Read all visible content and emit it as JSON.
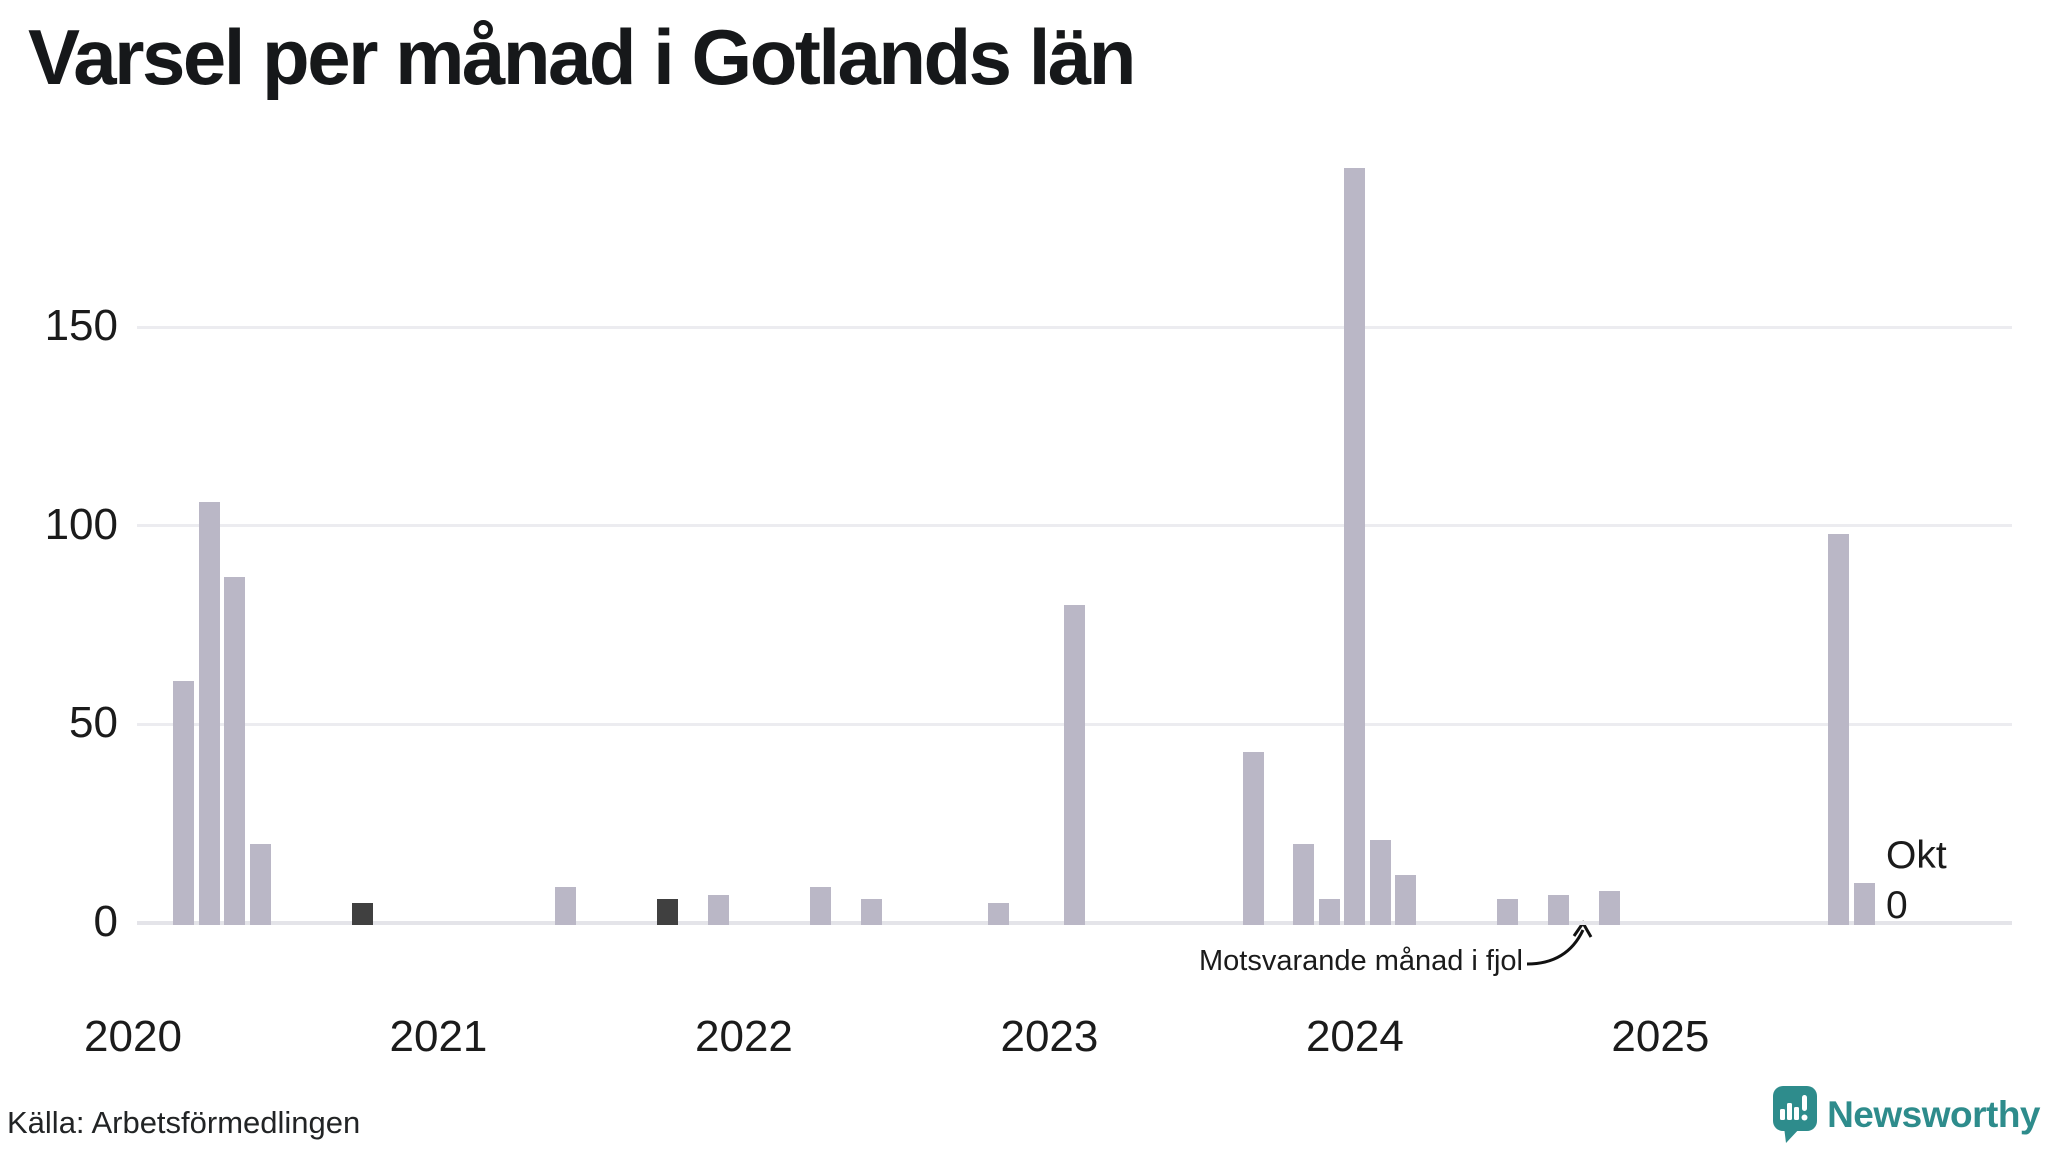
{
  "title": "Varsel per månad i Gotlands län",
  "source": {
    "text": "Källa: Arbetsförmedlingen"
  },
  "annotation": {
    "text": "Motsvarande månad i fjol",
    "points_to_month": "2024-10"
  },
  "latest_label": {
    "month": "Okt",
    "value": "0"
  },
  "brand": {
    "name": "Newsworthy"
  },
  "colors": {
    "bar": "#bab7c6",
    "bar_highlight": "#404040",
    "gridline": "#ececf0",
    "axisline": "#e4e4e9",
    "text": "#1b1b1b",
    "brand_teal": "#2e8c8c"
  },
  "chart_data": {
    "type": "bar",
    "title": "Varsel per månad i Gotlands län",
    "xlabel": "",
    "ylabel": "",
    "x_range": [
      "2020-01",
      "2025-10"
    ],
    "ylim": [
      0,
      195
    ],
    "grid": "horizontal",
    "y_ticks": [
      0,
      50,
      100,
      150
    ],
    "y_tick_labels": [
      "0",
      "50",
      "100",
      "150"
    ],
    "year_labels": [
      "2020",
      "2021",
      "2022",
      "2023",
      "2024",
      "2025"
    ],
    "highlighted_months": [
      "2020-10",
      "2021-10",
      "2025-10"
    ],
    "bars": [
      {
        "month": "2020-03",
        "value": 61,
        "highlight": false
      },
      {
        "month": "2020-04",
        "value": 106,
        "highlight": false
      },
      {
        "month": "2020-05",
        "value": 87,
        "highlight": false
      },
      {
        "month": "2020-06",
        "value": 20,
        "highlight": false
      },
      {
        "month": "2020-10",
        "value": 5,
        "highlight": true
      },
      {
        "month": "2021-06",
        "value": 9,
        "highlight": false
      },
      {
        "month": "2021-10",
        "value": 6,
        "highlight": true
      },
      {
        "month": "2021-12",
        "value": 7,
        "highlight": false
      },
      {
        "month": "2022-04",
        "value": 9,
        "highlight": false
      },
      {
        "month": "2022-06",
        "value": 6,
        "highlight": false
      },
      {
        "month": "2022-11",
        "value": 5,
        "highlight": false
      },
      {
        "month": "2023-02",
        "value": 80,
        "highlight": false
      },
      {
        "month": "2023-09",
        "value": 43,
        "highlight": false
      },
      {
        "month": "2023-11",
        "value": 20,
        "highlight": false
      },
      {
        "month": "2023-12",
        "value": 6,
        "highlight": false
      },
      {
        "month": "2024-01",
        "value": 190,
        "highlight": false
      },
      {
        "month": "2024-02",
        "value": 21,
        "highlight": false
      },
      {
        "month": "2024-03",
        "value": 12,
        "highlight": false
      },
      {
        "month": "2024-07",
        "value": 6,
        "highlight": false
      },
      {
        "month": "2024-09",
        "value": 7,
        "highlight": false
      },
      {
        "month": "2024-11",
        "value": 8,
        "highlight": false
      },
      {
        "month": "2025-08",
        "value": 98,
        "highlight": false
      },
      {
        "month": "2025-09",
        "value": 10,
        "highlight": false
      },
      {
        "month": "2025-10",
        "value": 0,
        "highlight": true
      }
    ]
  }
}
